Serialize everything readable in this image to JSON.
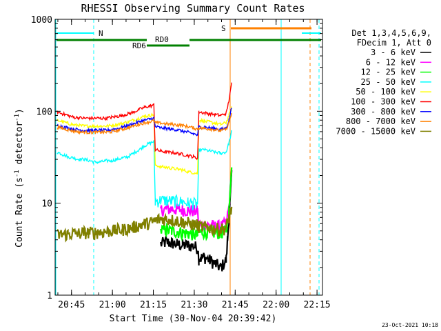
{
  "chart_data": {
    "type": "line",
    "title": "RHESSI Observing Summary Count Rates",
    "xlabel": "Start Time (30-Nov-04 20:39:42)",
    "ylabel": "Count Rate (s",
    "ylabel_sup1": "-1",
    "ylabel_mid": " detector",
    "ylabel_sup2": "-1",
    "ylabel_end": ")",
    "yscale": "log",
    "ylim": [
      1,
      1000
    ],
    "xlim_minutes": [
      -0.7,
      97.3
    ],
    "x_ticks": [
      {
        "label": "20:45",
        "min": 5.3
      },
      {
        "label": "21:00",
        "min": 20.3
      },
      {
        "label": "21:15",
        "min": 35.3
      },
      {
        "label": "21:30",
        "min": 50.3
      },
      {
        "label": "21:45",
        "min": 65.3
      },
      {
        "label": "22:00",
        "min": 80.3
      },
      {
        "label": "22:15",
        "min": 95.3
      }
    ],
    "y_ticks": [
      {
        "label": "1",
        "value": 1
      },
      {
        "label": "10",
        "value": 10
      },
      {
        "label": "100",
        "value": 100
      },
      {
        "label": "1000",
        "value": 1000
      }
    ],
    "legend_header": [
      "Det 1,3,4,5,6,9,",
      "FDecim 1, Att 0"
    ],
    "legend_position": "right",
    "series": [
      {
        "name": "3 - 6 keV",
        "color": "#000000",
        "points": [
          [
            38,
            3.6
          ],
          [
            40,
            3.8
          ],
          [
            42,
            3.7
          ],
          [
            44,
            3.6
          ],
          [
            46,
            3.5
          ],
          [
            48,
            3.5
          ],
          [
            50,
            3.4
          ],
          [
            51.5,
            3.3
          ],
          [
            52,
            2.5
          ],
          [
            54,
            2.6
          ],
          [
            56,
            2.4
          ],
          [
            58,
            2.2
          ],
          [
            60,
            2.0
          ],
          [
            62,
            2.4
          ],
          [
            62.5,
            4
          ],
          [
            63.5,
            12
          ],
          [
            64,
            22
          ]
        ]
      },
      {
        "name": "6 - 12 keV",
        "color": "#ff00ff",
        "points": [
          [
            38,
            8.5
          ],
          [
            40,
            8.6
          ],
          [
            42,
            8.7
          ],
          [
            44,
            8.6
          ],
          [
            46,
            8.5
          ],
          [
            48,
            8.4
          ],
          [
            50,
            8.3
          ],
          [
            51.5,
            8.2
          ],
          [
            52,
            5.8
          ],
          [
            54,
            5.8
          ],
          [
            56,
            5.7
          ],
          [
            58,
            5.6
          ],
          [
            60,
            5.6
          ],
          [
            62,
            6.0
          ],
          [
            63,
            9
          ],
          [
            64,
            24
          ]
        ]
      },
      {
        "name": "12 - 25 keV",
        "color": "#00ff00",
        "points": [
          [
            38,
            5.0
          ],
          [
            40,
            5.1
          ],
          [
            42,
            5.0
          ],
          [
            44,
            4.9
          ],
          [
            46,
            4.8
          ],
          [
            48,
            4.7
          ],
          [
            50,
            4.6
          ],
          [
            51.5,
            4.5
          ],
          [
            52,
            4.8
          ],
          [
            54,
            4.9
          ],
          [
            56,
            4.8
          ],
          [
            58,
            4.8
          ],
          [
            60,
            4.8
          ],
          [
            62,
            5.0
          ],
          [
            63,
            8
          ],
          [
            64,
            25
          ]
        ]
      },
      {
        "name": "25 - 50 keV",
        "color": "#00ffff",
        "points": [
          [
            0,
            36
          ],
          [
            2,
            34
          ],
          [
            4,
            32
          ],
          [
            6,
            31
          ],
          [
            8,
            30
          ],
          [
            10,
            30
          ],
          [
            12,
            29
          ],
          [
            14,
            28
          ],
          [
            16,
            28
          ],
          [
            18,
            29
          ],
          [
            20,
            29
          ],
          [
            22,
            30
          ],
          [
            24,
            31
          ],
          [
            26,
            32
          ],
          [
            28,
            35
          ],
          [
            30,
            38
          ],
          [
            32,
            42
          ],
          [
            34,
            45
          ],
          [
            35.5,
            47
          ],
          [
            36,
            10.5
          ],
          [
            38,
            10.8
          ],
          [
            40,
            10.7
          ],
          [
            42,
            10.6
          ],
          [
            44,
            10.5
          ],
          [
            46,
            10.3
          ],
          [
            48,
            10.1
          ],
          [
            50,
            9.9
          ],
          [
            51.5,
            9.8
          ],
          [
            52,
            38
          ],
          [
            54,
            38
          ],
          [
            56,
            37
          ],
          [
            58,
            36
          ],
          [
            60,
            35
          ],
          [
            62,
            36
          ],
          [
            63,
            45
          ],
          [
            64,
            60
          ]
        ]
      },
      {
        "name": "50 - 100 keV",
        "color": "#ffff00",
        "points": [
          [
            0,
            80
          ],
          [
            2,
            77
          ],
          [
            4,
            74
          ],
          [
            6,
            71
          ],
          [
            8,
            70
          ],
          [
            10,
            69
          ],
          [
            12,
            69
          ],
          [
            14,
            69
          ],
          [
            16,
            69
          ],
          [
            18,
            69
          ],
          [
            20,
            70
          ],
          [
            22,
            72
          ],
          [
            24,
            74
          ],
          [
            26,
            77
          ],
          [
            28,
            80
          ],
          [
            30,
            84
          ],
          [
            32,
            88
          ],
          [
            34,
            90
          ],
          [
            35.5,
            92
          ],
          [
            36,
            26
          ],
          [
            38,
            25
          ],
          [
            40,
            24.5
          ],
          [
            42,
            24
          ],
          [
            44,
            23.5
          ],
          [
            46,
            23
          ],
          [
            48,
            22
          ],
          [
            50,
            21.5
          ],
          [
            51.5,
            21
          ],
          [
            52,
            80
          ],
          [
            54,
            78
          ],
          [
            56,
            76
          ],
          [
            58,
            74
          ],
          [
            60,
            72
          ],
          [
            62,
            75
          ],
          [
            63,
            90
          ],
          [
            64,
            110
          ]
        ]
      },
      {
        "name": "100 - 300 keV",
        "color": "#ff0000",
        "points": [
          [
            0,
            98
          ],
          [
            2,
            94
          ],
          [
            4,
            90
          ],
          [
            6,
            86
          ],
          [
            8,
            85
          ],
          [
            10,
            84
          ],
          [
            12,
            84
          ],
          [
            14,
            84
          ],
          [
            16,
            84
          ],
          [
            18,
            84
          ],
          [
            20,
            86
          ],
          [
            22,
            88
          ],
          [
            24,
            90
          ],
          [
            26,
            94
          ],
          [
            28,
            98
          ],
          [
            30,
            104
          ],
          [
            32,
            110
          ],
          [
            34,
            114
          ],
          [
            35.5,
            117
          ],
          [
            36,
            38
          ],
          [
            38,
            37
          ],
          [
            40,
            36
          ],
          [
            42,
            35.5
          ],
          [
            44,
            35
          ],
          [
            46,
            34
          ],
          [
            48,
            33
          ],
          [
            50,
            32
          ],
          [
            51.5,
            31
          ],
          [
            52,
            98
          ],
          [
            54,
            96
          ],
          [
            56,
            94
          ],
          [
            58,
            92
          ],
          [
            60,
            90
          ],
          [
            62,
            95
          ],
          [
            63,
            130
          ],
          [
            64,
            200
          ]
        ]
      },
      {
        "name": "300 - 800 keV",
        "color": "#0000ff",
        "points": [
          [
            0,
            70
          ],
          [
            2,
            68
          ],
          [
            4,
            66
          ],
          [
            6,
            64
          ],
          [
            8,
            63
          ],
          [
            10,
            62
          ],
          [
            12,
            62
          ],
          [
            14,
            62
          ],
          [
            16,
            62
          ],
          [
            18,
            62
          ],
          [
            20,
            63
          ],
          [
            22,
            65
          ],
          [
            24,
            67
          ],
          [
            26,
            70
          ],
          [
            28,
            73
          ],
          [
            30,
            77
          ],
          [
            32,
            80
          ],
          [
            34,
            82
          ],
          [
            35.5,
            84
          ],
          [
            36,
            68
          ],
          [
            38,
            66
          ],
          [
            40,
            65
          ],
          [
            42,
            64
          ],
          [
            44,
            63
          ],
          [
            46,
            61
          ],
          [
            48,
            59
          ],
          [
            50,
            57
          ],
          [
            51.5,
            55
          ],
          [
            52,
            68
          ],
          [
            54,
            67
          ],
          [
            56,
            66
          ],
          [
            58,
            65
          ],
          [
            60,
            63
          ],
          [
            62,
            66
          ],
          [
            63,
            80
          ],
          [
            64,
            110
          ]
        ]
      },
      {
        "name": "800 - 7000 keV",
        "color": "#ff8000",
        "points": [
          [
            0,
            67
          ],
          [
            2,
            65
          ],
          [
            4,
            63
          ],
          [
            6,
            61
          ],
          [
            8,
            60
          ],
          [
            10,
            59
          ],
          [
            12,
            59
          ],
          [
            14,
            59
          ],
          [
            16,
            59
          ],
          [
            18,
            59
          ],
          [
            20,
            60
          ],
          [
            22,
            62
          ],
          [
            24,
            64
          ],
          [
            26,
            66
          ],
          [
            28,
            69
          ],
          [
            30,
            72
          ],
          [
            32,
            75
          ],
          [
            34,
            77
          ],
          [
            35.5,
            79
          ],
          [
            36,
            75
          ],
          [
            38,
            74
          ],
          [
            40,
            73
          ],
          [
            42,
            72
          ],
          [
            44,
            71
          ],
          [
            46,
            70
          ],
          [
            48,
            68
          ],
          [
            50,
            66
          ],
          [
            51.5,
            64
          ],
          [
            52,
            66
          ],
          [
            54,
            65
          ],
          [
            56,
            64
          ],
          [
            58,
            63
          ],
          [
            60,
            61
          ],
          [
            62,
            64
          ],
          [
            63,
            75
          ],
          [
            64,
            95
          ]
        ]
      },
      {
        "name": "7000 - 15000 keV",
        "color": "#808000",
        "points": [
          [
            0,
            4.5
          ],
          [
            2,
            4.6
          ],
          [
            4,
            4.6
          ],
          [
            6,
            4.7
          ],
          [
            8,
            4.7
          ],
          [
            10,
            4.8
          ],
          [
            12,
            4.8
          ],
          [
            14,
            4.8
          ],
          [
            16,
            4.9
          ],
          [
            18,
            4.9
          ],
          [
            20,
            5.0
          ],
          [
            22,
            5.1
          ],
          [
            24,
            5.2
          ],
          [
            26,
            5.3
          ],
          [
            28,
            5.5
          ],
          [
            30,
            5.8
          ],
          [
            32,
            6.0
          ],
          [
            34,
            6.1
          ],
          [
            35.5,
            6.3
          ],
          [
            36,
            6.5
          ],
          [
            38,
            6.8
          ],
          [
            40,
            6.7
          ],
          [
            42,
            6.6
          ],
          [
            44,
            6.5
          ],
          [
            46,
            6.3
          ],
          [
            48,
            6.1
          ],
          [
            50,
            5.9
          ],
          [
            51.5,
            5.8
          ],
          [
            52,
            5.6
          ],
          [
            54,
            5.5
          ],
          [
            56,
            5.4
          ],
          [
            58,
            5.3
          ],
          [
            60,
            5.2
          ],
          [
            62,
            5.4
          ],
          [
            63,
            7
          ],
          [
            64,
            9
          ]
        ]
      }
    ],
    "annotations": [
      {
        "label": "N",
        "color": "#00ffff"
      },
      {
        "label": "RD0",
        "color": "#008000"
      },
      {
        "label": "RD6",
        "color": "#008000"
      },
      {
        "label": "S",
        "color": "#ff8000"
      }
    ]
  },
  "timestamp": "23-Oct-2021 10:18"
}
